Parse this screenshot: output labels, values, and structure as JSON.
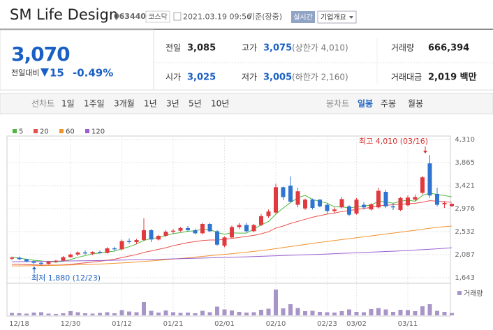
{
  "header": {
    "title": "SM Life Design",
    "code": "063440",
    "market": "코스닥",
    "datetime": "2021.03.19 09:56",
    "basis": "기준(장중)",
    "realtime_button": "실시간",
    "company_button": "기업개요"
  },
  "price": {
    "current": "3,070",
    "change_label": "전일대비",
    "change": "15",
    "change_rate": "-0.49%"
  },
  "summary": {
    "rows": [
      [
        {
          "label": "전일",
          "value": "3,085"
        },
        {
          "label": "고가",
          "value": "3,075",
          "note": "(상한가 4,010)"
        },
        {
          "label": "거래량",
          "value": "666,394"
        }
      ],
      [
        {
          "label": "시가",
          "value": "3,025"
        },
        {
          "label": "저가",
          "value": "3,005",
          "note": "(하한가 2,160)"
        },
        {
          "label": "거래대금",
          "value": "2,019 백만"
        }
      ]
    ]
  },
  "tabs": {
    "line_label": "선차트",
    "line": [
      "1일",
      "1주일",
      "3개월",
      "1년",
      "3년",
      "5년",
      "10년"
    ],
    "candle_label": "봉차트",
    "candle": [
      "일봉",
      "주봉",
      "월봉"
    ]
  },
  "chart_data": {
    "type": "candlestick",
    "categories": [
      null,
      "12/18",
      null,
      null,
      null,
      null,
      null,
      null,
      "12/30",
      null,
      null,
      null,
      null,
      null,
      null,
      "01/12",
      null,
      null,
      null,
      null,
      null,
      null,
      "01/21",
      null,
      null,
      null,
      null,
      null,
      null,
      "02/01",
      null,
      null,
      null,
      null,
      null,
      null,
      "02/10",
      null,
      null,
      null,
      null,
      null,
      null,
      "02/23",
      null,
      null,
      null,
      "03/02",
      null,
      null,
      null,
      null,
      null,
      null,
      "03/11",
      null,
      null,
      null,
      null,
      null,
      null
    ],
    "open": [
      2010,
      2030,
      2000,
      1960,
      1930,
      1910,
      1950,
      1970,
      2040,
      2090,
      2130,
      2110,
      2140,
      2120,
      2210,
      2190,
      2350,
      2330,
      2370,
      2560,
      2380,
      2450,
      2530,
      2550,
      2600,
      2560,
      2500,
      2680,
      2540,
      2260,
      2420,
      2620,
      2660,
      2540,
      2660,
      2830,
      2900,
      3390,
      3420,
      3050,
      2980,
      3150,
      3150,
      3050,
      2930,
      3000,
      3020,
      2880,
      3050,
      2960,
      3000,
      3300,
      3020,
      2950,
      3040,
      3150,
      3280,
      3850,
      3260,
      3060,
      3025
    ],
    "high": [
      2050,
      2050,
      2010,
      1980,
      1950,
      1960,
      1990,
      2060,
      2110,
      2150,
      2170,
      2150,
      2170,
      2230,
      2240,
      2380,
      2400,
      2390,
      2790,
      2580,
      2470,
      2560,
      2580,
      2620,
      2640,
      2590,
      2700,
      2700,
      2560,
      2440,
      2650,
      2700,
      2700,
      2680,
      2870,
      2960,
      3460,
      3400,
      3600,
      3380,
      3170,
      3170,
      3160,
      3080,
      3000,
      3200,
      3040,
      3180,
      3100,
      3080,
      3380,
      3340,
      3080,
      3200,
      3230,
      3250,
      3610,
      4010,
      3380,
      3120,
      3075
    ],
    "low": [
      1980,
      1980,
      1940,
      1910,
      1880,
      1900,
      1930,
      1960,
      2020,
      2060,
      2090,
      2080,
      2110,
      2110,
      2160,
      2170,
      2300,
      2290,
      2350,
      2330,
      2360,
      2430,
      2490,
      2530,
      2530,
      2480,
      2480,
      2520,
      2260,
      2230,
      2400,
      2580,
      2520,
      2520,
      2640,
      2800,
      2880,
      3140,
      3100,
      3000,
      2950,
      2960,
      3000,
      2880,
      2880,
      2980,
      2830,
      2860,
      2960,
      2940,
      2980,
      2990,
      2950,
      2930,
      3020,
      3120,
      3250,
      3180,
      3020,
      2990,
      3005
    ],
    "close": [
      2030,
      2000,
      1960,
      1930,
      1910,
      1950,
      1970,
      2040,
      2090,
      2130,
      2110,
      2140,
      2120,
      2210,
      2190,
      2350,
      2330,
      2370,
      2560,
      2380,
      2450,
      2530,
      2550,
      2600,
      2560,
      2500,
      2680,
      2540,
      2280,
      2420,
      2620,
      2660,
      2540,
      2660,
      2830,
      2920,
      3390,
      3200,
      3110,
      3310,
      3150,
      2990,
      3020,
      2930,
      2960,
      3160,
      2860,
      3150,
      3000,
      3060,
      3320,
      3020,
      3000,
      3180,
      3190,
      3200,
      3580,
      3230,
      3050,
      3085,
      3070
    ],
    "up_color": "#e0393e",
    "down_color": "#2f74d0",
    "series": [
      {
        "name": "5",
        "color": "#4cb83c",
        "values": [
          2040,
          2020,
          2000,
          1980,
          1966,
          1952,
          1944,
          1960,
          1992,
          2036,
          2068,
          2102,
          2118,
          2142,
          2154,
          2202,
          2240,
          2294,
          2362,
          2398,
          2418,
          2458,
          2494,
          2514,
          2538,
          2548,
          2578,
          2576,
          2512,
          2484,
          2508,
          2504,
          2504,
          2580,
          2662,
          2726,
          2868,
          2988,
          3092,
          3186,
          3232,
          3152,
          3116,
          3082,
          3010,
          3012,
          2986,
          3012,
          3026,
          3046,
          3118,
          3110,
          3080,
          3116,
          3142,
          3118,
          3230,
          3276,
          3250,
          3229,
          3203
        ]
      },
      {
        "name": "20",
        "color": "#e8504a",
        "values": [
          1900,
          1900,
          1895,
          1890,
          1885,
          1885,
          1885,
          1890,
          1900,
          1915,
          1930,
          1945,
          1960,
          1980,
          2000,
          2030,
          2060,
          2090,
          2130,
          2160,
          2190,
          2220,
          2260,
          2290,
          2320,
          2340,
          2360,
          2370,
          2370,
          2380,
          2400,
          2420,
          2440,
          2460,
          2490,
          2530,
          2600,
          2640,
          2690,
          2730,
          2770,
          2810,
          2840,
          2870,
          2890,
          2920,
          2940,
          2960,
          2980,
          3000,
          3030,
          3040,
          3050,
          3060,
          3070,
          3080,
          3100,
          3130,
          3120,
          3110,
          3100
        ]
      },
      {
        "name": "60",
        "color": "#f0942e",
        "values": [
          1870,
          1870,
          1872,
          1874,
          1876,
          1878,
          1880,
          1884,
          1888,
          1892,
          1896,
          1900,
          1906,
          1912,
          1920,
          1928,
          1936,
          1946,
          1956,
          1966,
          1978,
          1990,
          2002,
          2014,
          2026,
          2040,
          2054,
          2068,
          2080,
          2092,
          2106,
          2120,
          2134,
          2150,
          2166,
          2184,
          2204,
          2224,
          2244,
          2264,
          2284,
          2304,
          2324,
          2342,
          2360,
          2378,
          2396,
          2414,
          2432,
          2450,
          2468,
          2486,
          2504,
          2522,
          2540,
          2558,
          2578,
          2598,
          2614,
          2628,
          2640
        ]
      },
      {
        "name": "120",
        "color": "#9b5fd0",
        "values": [
          1950,
          1952,
          1954,
          1956,
          1958,
          1960,
          1962,
          1964,
          1966,
          1968,
          1970,
          1972,
          1974,
          1977,
          1980,
          1983,
          1986,
          1989,
          1992,
          1995,
          1998,
          2002,
          2006,
          2010,
          2014,
          2018,
          2022,
          2026,
          2030,
          2034,
          2038,
          2042,
          2046,
          2050,
          2055,
          2060,
          2065,
          2070,
          2075,
          2080,
          2085,
          2090,
          2095,
          2100,
          2106,
          2112,
          2118,
          2124,
          2130,
          2136,
          2142,
          2148,
          2154,
          2160,
          2168,
          2176,
          2184,
          2192,
          2200,
          2210,
          2220
        ]
      }
    ],
    "ylim": [
      1643,
      4310
    ],
    "yticks": [
      {
        "value": 4310,
        "label": "4,310"
      },
      {
        "value": 3865,
        "label": "3,865"
      },
      {
        "value": 3421,
        "label": "3,421"
      },
      {
        "value": 2976,
        "label": "2,976"
      },
      {
        "value": 2532,
        "label": "2,532"
      },
      {
        "value": 2087,
        "label": "2,087"
      },
      {
        "value": 1643,
        "label": "1,643"
      }
    ],
    "grid": true,
    "annotations": [
      "최고 4,010 (03/16)",
      "최저 1,880 (12/23)"
    ],
    "volume_label": "거래량",
    "volume_color": "#a895c8",
    "volume": [
      700000,
      600000,
      500000,
      800000,
      900000,
      500000,
      400000,
      600000,
      1200000,
      900000,
      600000,
      500000,
      700000,
      900000,
      600000,
      1500000,
      1100000,
      900000,
      3800000,
      1300000,
      800000,
      1400000,
      900000,
      700000,
      800000,
      600000,
      1300000,
      900000,
      2500000,
      1700000,
      1400000,
      1000000,
      800000,
      900000,
      1600000,
      1900000,
      7400000,
      2000000,
      3200000,
      2100000,
      1200000,
      1300000,
      1000000,
      900000,
      800000,
      1200000,
      1700000,
      1000000,
      900000,
      1800000,
      2100000,
      1700000,
      1000000,
      1600000,
      1500000,
      1200000,
      2600000,
      3200000,
      1300000,
      1000000,
      666394
    ],
    "volume_ylim": [
      0,
      7600000
    ]
  }
}
